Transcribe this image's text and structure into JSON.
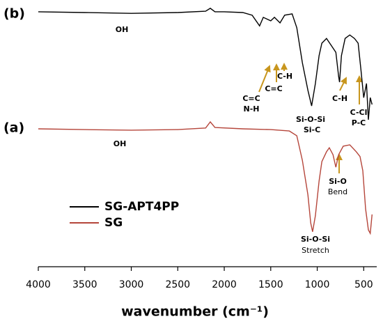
{
  "chart_data": {
    "type": "line",
    "xlabel": "wavenumber (cm⁻¹)",
    "xlim": [
      4000,
      360
    ],
    "xticks": [
      4000,
      3500,
      3000,
      2500,
      2000,
      1500,
      1000,
      500
    ],
    "ylim": [
      0,
      100
    ],
    "legend": "lower left",
    "series": [
      {
        "name": "SG-APT4PP",
        "color": "#000000",
        "x": [
          4000,
          3500,
          3000,
          2500,
          2200,
          2150,
          2100,
          2000,
          1800,
          1700,
          1620,
          1580,
          1500,
          1460,
          1400,
          1350,
          1270,
          1220,
          1160,
          1100,
          1060,
          1020,
          980,
          950,
          900,
          850,
          800,
          770,
          760,
          740,
          700,
          650,
          600,
          560,
          530,
          500,
          470,
          450,
          430,
          410
        ],
        "values": [
          95.6,
          95.3,
          95.0,
          95.3,
          95.8,
          96.9,
          95.6,
          95.6,
          95.3,
          94.3,
          90.3,
          93.5,
          92.2,
          93.5,
          91.4,
          94.3,
          94.8,
          89.6,
          76.5,
          66.1,
          60.3,
          68.7,
          79.1,
          83.8,
          85.6,
          83.0,
          80.4,
          71.3,
          69.2,
          79.1,
          85.6,
          86.9,
          85.6,
          83.8,
          73.9,
          63.4,
          68.7,
          55.1,
          63.4,
          60.8
        ]
      },
      {
        "name": "SG",
        "color": "#b5453a",
        "x": [
          4000,
          3500,
          3000,
          2500,
          2200,
          2150,
          2100,
          1800,
          1500,
          1300,
          1220,
          1160,
          1100,
          1070,
          1050,
          1020,
          980,
          950,
          900,
          870,
          830,
          800,
          770,
          720,
          650,
          580,
          540,
          510,
          480,
          450,
          430,
          410
        ],
        "values": [
          51.7,
          51.4,
          51.2,
          51.4,
          52.0,
          54.3,
          52.2,
          51.7,
          51.4,
          50.9,
          49.1,
          39.9,
          26.9,
          16.4,
          13.1,
          19.1,
          32.1,
          39.4,
          43.1,
          44.6,
          42.0,
          37.3,
          42.0,
          45.2,
          45.7,
          43.1,
          41.3,
          36.0,
          21.7,
          13.8,
          12.5,
          19.6
        ]
      }
    ],
    "annotations": [
      "(b)",
      "(a)",
      "OH",
      "OH",
      "C=C",
      "N-H",
      "C=C",
      "C-H",
      "C-H",
      "Si-O-Si",
      "Si-C",
      "C-Cl",
      "P-C",
      "Si-O",
      "Bend",
      "Si-O-Si",
      "Stretch"
    ]
  }
}
